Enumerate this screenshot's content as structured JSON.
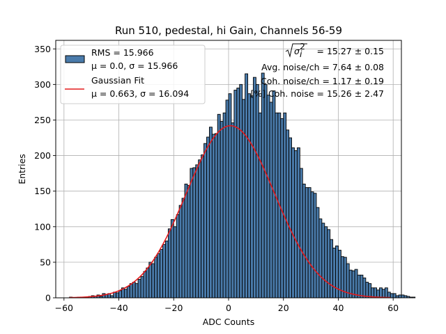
{
  "chart_data": {
    "type": "bar",
    "title": "Run 510, pedestal, hi Gain, Channels 56-59",
    "xlabel": "ADC Counts",
    "ylabel": "Entries",
    "xlim": [
      -63,
      63
    ],
    "ylim": [
      0,
      362
    ],
    "xticks": [
      -60,
      -40,
      -20,
      0,
      20,
      40,
      60
    ],
    "yticks": [
      0,
      50,
      100,
      150,
      200,
      250,
      300,
      350
    ],
    "grid": true,
    "bin_width": 1,
    "bins_start": -58,
    "colors": {
      "bar_fill": "#4a7bab",
      "bar_edge": "#000000",
      "fit_line": "#e31a1c"
    },
    "series": [
      {
        "name": "RMS = 15.966",
        "subtitle": "μ = 0.0, σ = 15.966",
        "kind": "histogram",
        "values": [
          1,
          0,
          0,
          1,
          1,
          0,
          1,
          2,
          3,
          2,
          4,
          2,
          6,
          5,
          6,
          3,
          8,
          7,
          10,
          14,
          12,
          16,
          20,
          22,
          20,
          26,
          30,
          37,
          42,
          50,
          48,
          57,
          62,
          68,
          75,
          80,
          97,
          110,
          100,
          117,
          130,
          140,
          160,
          158,
          182,
          183,
          187,
          194,
          201,
          217,
          226,
          240,
          230,
          231,
          258,
          248,
          260,
          278,
          287,
          246,
          292,
          295,
          300,
          279,
          315,
          287,
          284,
          310,
          300,
          260,
          316,
          300,
          285,
          275,
          291,
          260,
          260,
          252,
          260,
          236,
          225,
          211,
          207,
          211,
          182,
          160,
          155,
          155,
          149,
          147,
          127,
          111,
          105,
          100,
          96,
          82,
          70,
          73,
          67,
          58,
          57,
          48,
          39,
          38,
          40,
          32,
          32,
          28,
          22,
          20,
          14,
          14,
          11,
          14,
          12,
          14,
          8,
          6,
          6,
          3,
          4,
          4,
          3,
          2,
          1,
          1
        ]
      },
      {
        "name": "Gaussian Fit",
        "subtitle": "μ = 0.663, σ = 16.094",
        "kind": "gaussian",
        "mu": 0.663,
        "sigma": 16.094,
        "amplitude": 242,
        "x_range": [
          -58,
          59
        ]
      }
    ],
    "annotations": {
      "line1_suffix": " = 15.27 ± 0.15",
      "line2": "Avg. noise/ch = 7.64 ± 0.08",
      "line3": "Coh. noise/ch = 1.17 ± 0.19",
      "line4": "[%] Coh. noise = 15.26 ± 2.47"
    },
    "legend_position": "top-left"
  }
}
